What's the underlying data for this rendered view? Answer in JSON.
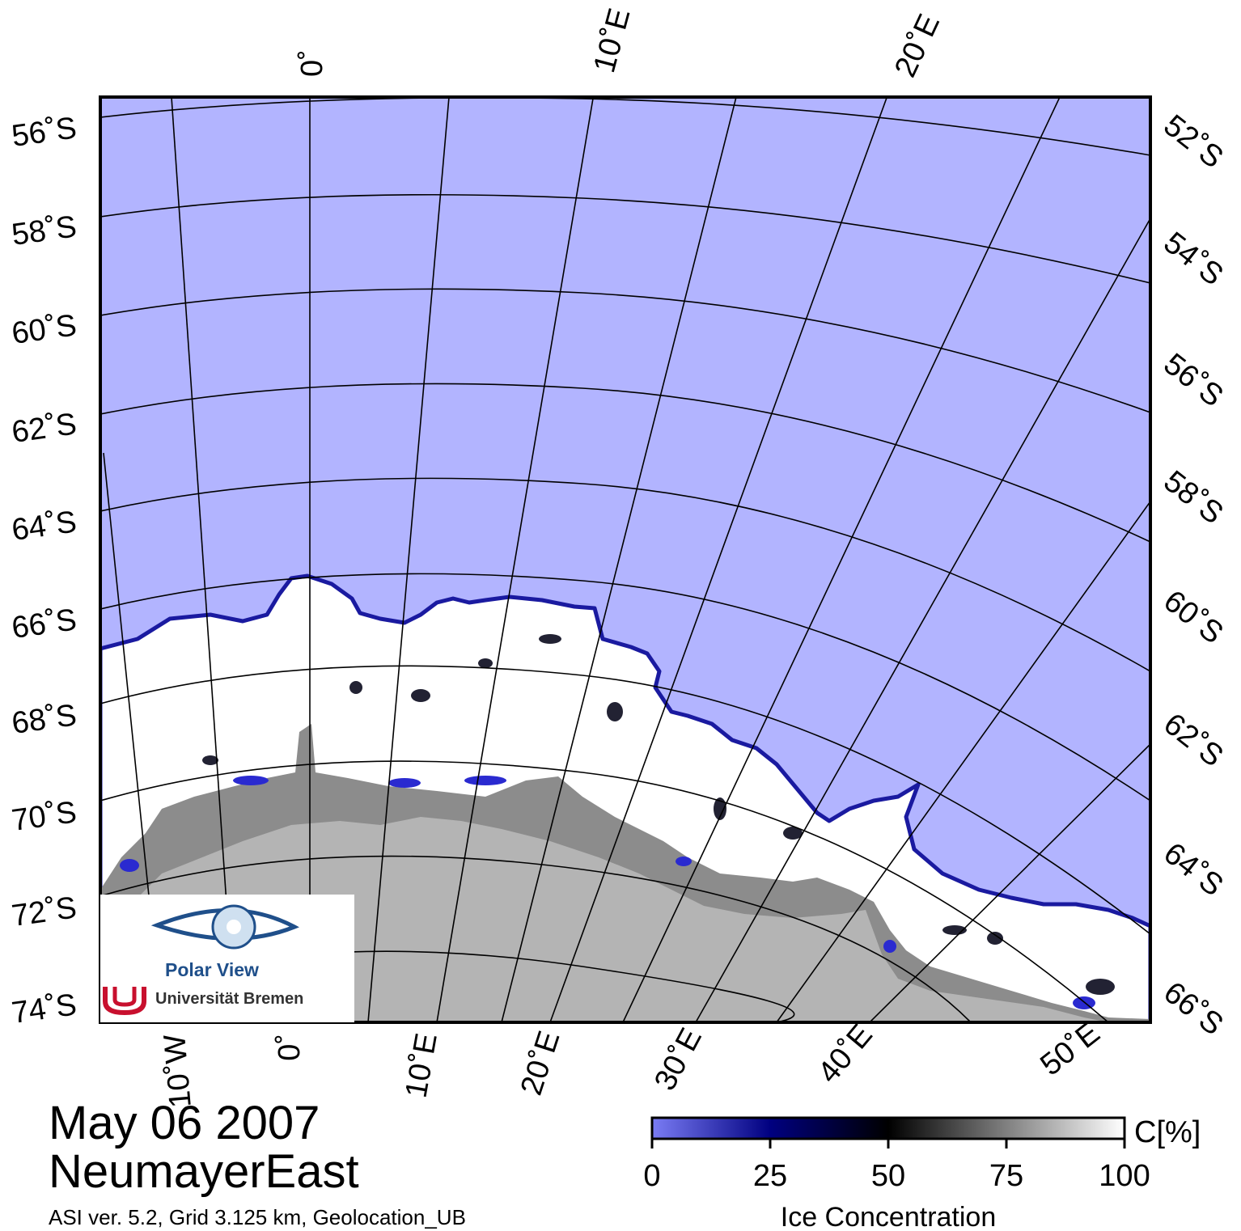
{
  "header": {
    "date": "May 06 2007",
    "region": "NeumayerEast"
  },
  "footer": {
    "info": "ASI ver. 5.2,  Grid 3.125 km, Geolocation_UB"
  },
  "logo": {
    "icon": "polar-eye-icon",
    "title": "Polar View",
    "institution": "Universität Bremen",
    "crest": "bremen-u-crest-icon"
  },
  "legend": {
    "title": "Ice Concentration",
    "unit": "C[%]",
    "ticks": [
      "0",
      "25",
      "50",
      "75",
      "100"
    ],
    "colors": [
      "#7a7cf4",
      "#000080",
      "#000000",
      "#808080",
      "#ffffff"
    ]
  },
  "map": {
    "colors": {
      "ocean": "#b2b4ff",
      "ice": "#ffffff",
      "ice_shelf": "#8c8c8c",
      "land": "#b4b4b4",
      "edge": "#1a1aa0"
    },
    "left_labels": [
      "56˚S",
      "58˚S",
      "60˚S",
      "62˚S",
      "64˚S",
      "66˚S",
      "68˚S",
      "70˚S",
      "72˚S",
      "74˚S"
    ],
    "right_labels": [
      "52˚S",
      "54˚S",
      "56˚S",
      "58˚S",
      "60˚S",
      "62˚S",
      "64˚S",
      "66˚S"
    ],
    "top_labels": [
      "0˚",
      "10˚E",
      "20˚E"
    ],
    "bottom_labels": [
      "10˚W",
      "0˚",
      "10˚E",
      "20˚E",
      "30˚E",
      "40˚E",
      "50˚E"
    ]
  }
}
